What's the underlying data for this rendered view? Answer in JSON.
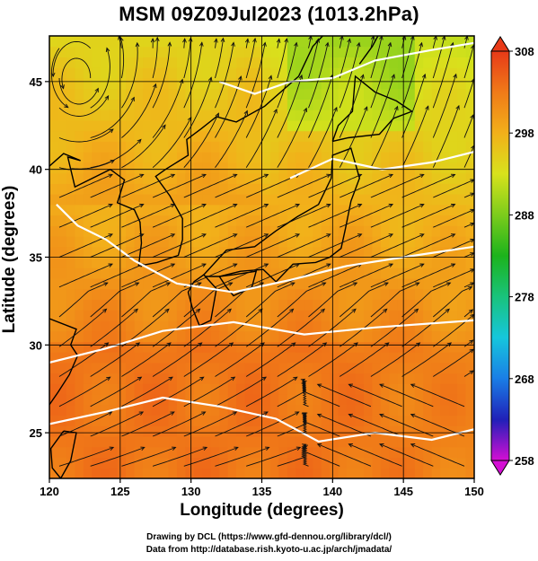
{
  "chart_data": {
    "type": "heatmap",
    "title": "MSM 09Z09Jul2023 (1013.2hPa)",
    "xlabel": "Longitude (degrees)",
    "ylabel": "Latitude  (degrees)",
    "xlim": [
      120,
      150
    ],
    "ylim": [
      22.4,
      47.6
    ],
    "x_ticks": [
      120,
      125,
      130,
      135,
      140,
      145,
      150
    ],
    "y_ticks": [
      25,
      30,
      35,
      40,
      45
    ],
    "colorbar": {
      "label_values": [
        258,
        268,
        278,
        288,
        298,
        308
      ],
      "range": [
        258,
        308
      ],
      "colors": [
        "#d40fd4",
        "#2020b8",
        "#1a7ee6",
        "#16c6dc",
        "#19c37c",
        "#1cb31c",
        "#7ccc1c",
        "#d8e21c",
        "#f2b01a",
        "#f07a18",
        "#e83a18"
      ]
    },
    "grid": true,
    "overlay": "streamlines and white contour lines over temperature shading (K)"
  },
  "credits": {
    "line1": "Drawing by DCL (https://www.gfd-dennou.org/library/dcl/)",
    "line2": "Data from http://database.rish.kyoto-u.ac.jp/arch/jmadata/"
  }
}
